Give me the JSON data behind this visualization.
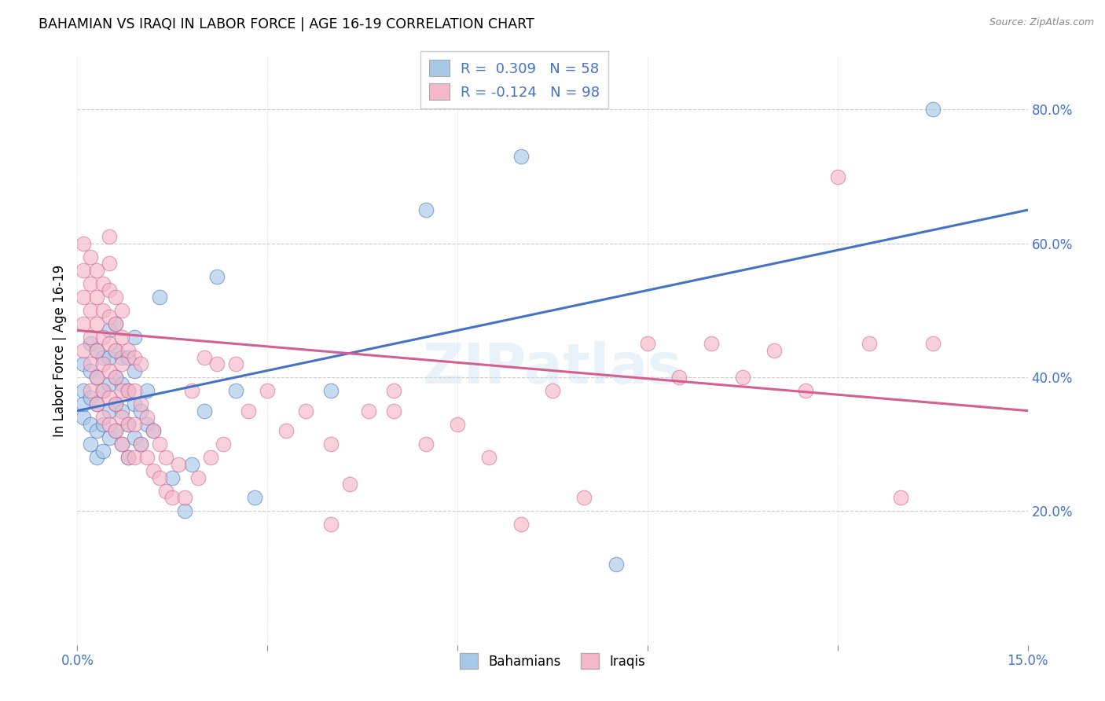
{
  "title": "BAHAMIAN VS IRAQI IN LABOR FORCE | AGE 16-19 CORRELATION CHART",
  "source": "Source: ZipAtlas.com",
  "ylabel": "In Labor Force | Age 16-19",
  "xlim": [
    0.0,
    0.15
  ],
  "ylim": [
    0.0,
    0.88
  ],
  "xticks": [
    0.0,
    0.03,
    0.06,
    0.09,
    0.12,
    0.15
  ],
  "xticklabels_show": [
    "0.0%",
    "",
    "",
    "",
    "",
    "15.0%"
  ],
  "yticks_right": [
    0.2,
    0.4,
    0.6,
    0.8
  ],
  "yticklabels_right": [
    "20.0%",
    "40.0%",
    "60.0%",
    "80.0%"
  ],
  "blue_R": 0.309,
  "blue_N": 58,
  "pink_R": -0.124,
  "pink_N": 98,
  "blue_color": "#a8c8e8",
  "pink_color": "#f4b8c8",
  "trend_blue": "#4472c4",
  "trend_pink": "#d46090",
  "legend_label_blue": "Bahamians",
  "legend_label_pink": "Iraqis",
  "watermark": "ZIPatlas",
  "blue_trend_x0": 0.0,
  "blue_trend_y0": 0.35,
  "blue_trend_x1": 0.15,
  "blue_trend_y1": 0.65,
  "pink_trend_x0": 0.0,
  "pink_trend_y0": 0.47,
  "pink_trend_x1": 0.15,
  "pink_trend_y1": 0.35,
  "blue_scatter_x": [
    0.001,
    0.001,
    0.001,
    0.001,
    0.002,
    0.002,
    0.002,
    0.002,
    0.002,
    0.003,
    0.003,
    0.003,
    0.003,
    0.003,
    0.004,
    0.004,
    0.004,
    0.004,
    0.005,
    0.005,
    0.005,
    0.005,
    0.005,
    0.006,
    0.006,
    0.006,
    0.006,
    0.006,
    0.007,
    0.007,
    0.007,
    0.007,
    0.008,
    0.008,
    0.008,
    0.008,
    0.009,
    0.009,
    0.009,
    0.009,
    0.01,
    0.01,
    0.011,
    0.011,
    0.012,
    0.013,
    0.015,
    0.017,
    0.018,
    0.02,
    0.022,
    0.025,
    0.028,
    0.04,
    0.055,
    0.07,
    0.085,
    0.135
  ],
  "blue_scatter_y": [
    0.34,
    0.38,
    0.42,
    0.36,
    0.3,
    0.33,
    0.37,
    0.41,
    0.45,
    0.28,
    0.32,
    0.36,
    0.4,
    0.44,
    0.29,
    0.33,
    0.38,
    0.43,
    0.31,
    0.35,
    0.39,
    0.43,
    0.47,
    0.32,
    0.36,
    0.4,
    0.44,
    0.48,
    0.3,
    0.35,
    0.39,
    0.43,
    0.28,
    0.33,
    0.38,
    0.43,
    0.31,
    0.36,
    0.41,
    0.46,
    0.3,
    0.35,
    0.33,
    0.38,
    0.32,
    0.52,
    0.25,
    0.2,
    0.27,
    0.35,
    0.55,
    0.38,
    0.22,
    0.38,
    0.65,
    0.73,
    0.12,
    0.8
  ],
  "pink_scatter_x": [
    0.001,
    0.001,
    0.001,
    0.001,
    0.001,
    0.002,
    0.002,
    0.002,
    0.002,
    0.002,
    0.002,
    0.003,
    0.003,
    0.003,
    0.003,
    0.003,
    0.003,
    0.004,
    0.004,
    0.004,
    0.004,
    0.004,
    0.004,
    0.005,
    0.005,
    0.005,
    0.005,
    0.005,
    0.005,
    0.005,
    0.005,
    0.006,
    0.006,
    0.006,
    0.006,
    0.006,
    0.006,
    0.007,
    0.007,
    0.007,
    0.007,
    0.007,
    0.007,
    0.008,
    0.008,
    0.008,
    0.008,
    0.009,
    0.009,
    0.009,
    0.009,
    0.01,
    0.01,
    0.01,
    0.011,
    0.011,
    0.012,
    0.012,
    0.013,
    0.013,
    0.014,
    0.014,
    0.015,
    0.016,
    0.017,
    0.018,
    0.019,
    0.02,
    0.021,
    0.022,
    0.023,
    0.025,
    0.027,
    0.03,
    0.033,
    0.036,
    0.04,
    0.043,
    0.046,
    0.05,
    0.055,
    0.06,
    0.065,
    0.07,
    0.075,
    0.08,
    0.09,
    0.095,
    0.1,
    0.105,
    0.11,
    0.115,
    0.12,
    0.125,
    0.13,
    0.135,
    0.05,
    0.04
  ],
  "pink_scatter_y": [
    0.44,
    0.48,
    0.52,
    0.56,
    0.6,
    0.38,
    0.42,
    0.46,
    0.5,
    0.54,
    0.58,
    0.36,
    0.4,
    0.44,
    0.48,
    0.52,
    0.56,
    0.34,
    0.38,
    0.42,
    0.46,
    0.5,
    0.54,
    0.33,
    0.37,
    0.41,
    0.45,
    0.49,
    0.53,
    0.57,
    0.61,
    0.32,
    0.36,
    0.4,
    0.44,
    0.48,
    0.52,
    0.3,
    0.34,
    0.38,
    0.42,
    0.46,
    0.5,
    0.28,
    0.33,
    0.38,
    0.44,
    0.28,
    0.33,
    0.38,
    0.43,
    0.3,
    0.36,
    0.42,
    0.28,
    0.34,
    0.26,
    0.32,
    0.25,
    0.3,
    0.23,
    0.28,
    0.22,
    0.27,
    0.22,
    0.38,
    0.25,
    0.43,
    0.28,
    0.42,
    0.3,
    0.42,
    0.35,
    0.38,
    0.32,
    0.35,
    0.18,
    0.24,
    0.35,
    0.35,
    0.3,
    0.33,
    0.28,
    0.18,
    0.38,
    0.22,
    0.45,
    0.4,
    0.45,
    0.4,
    0.44,
    0.38,
    0.7,
    0.45,
    0.22,
    0.45,
    0.38,
    0.3
  ]
}
